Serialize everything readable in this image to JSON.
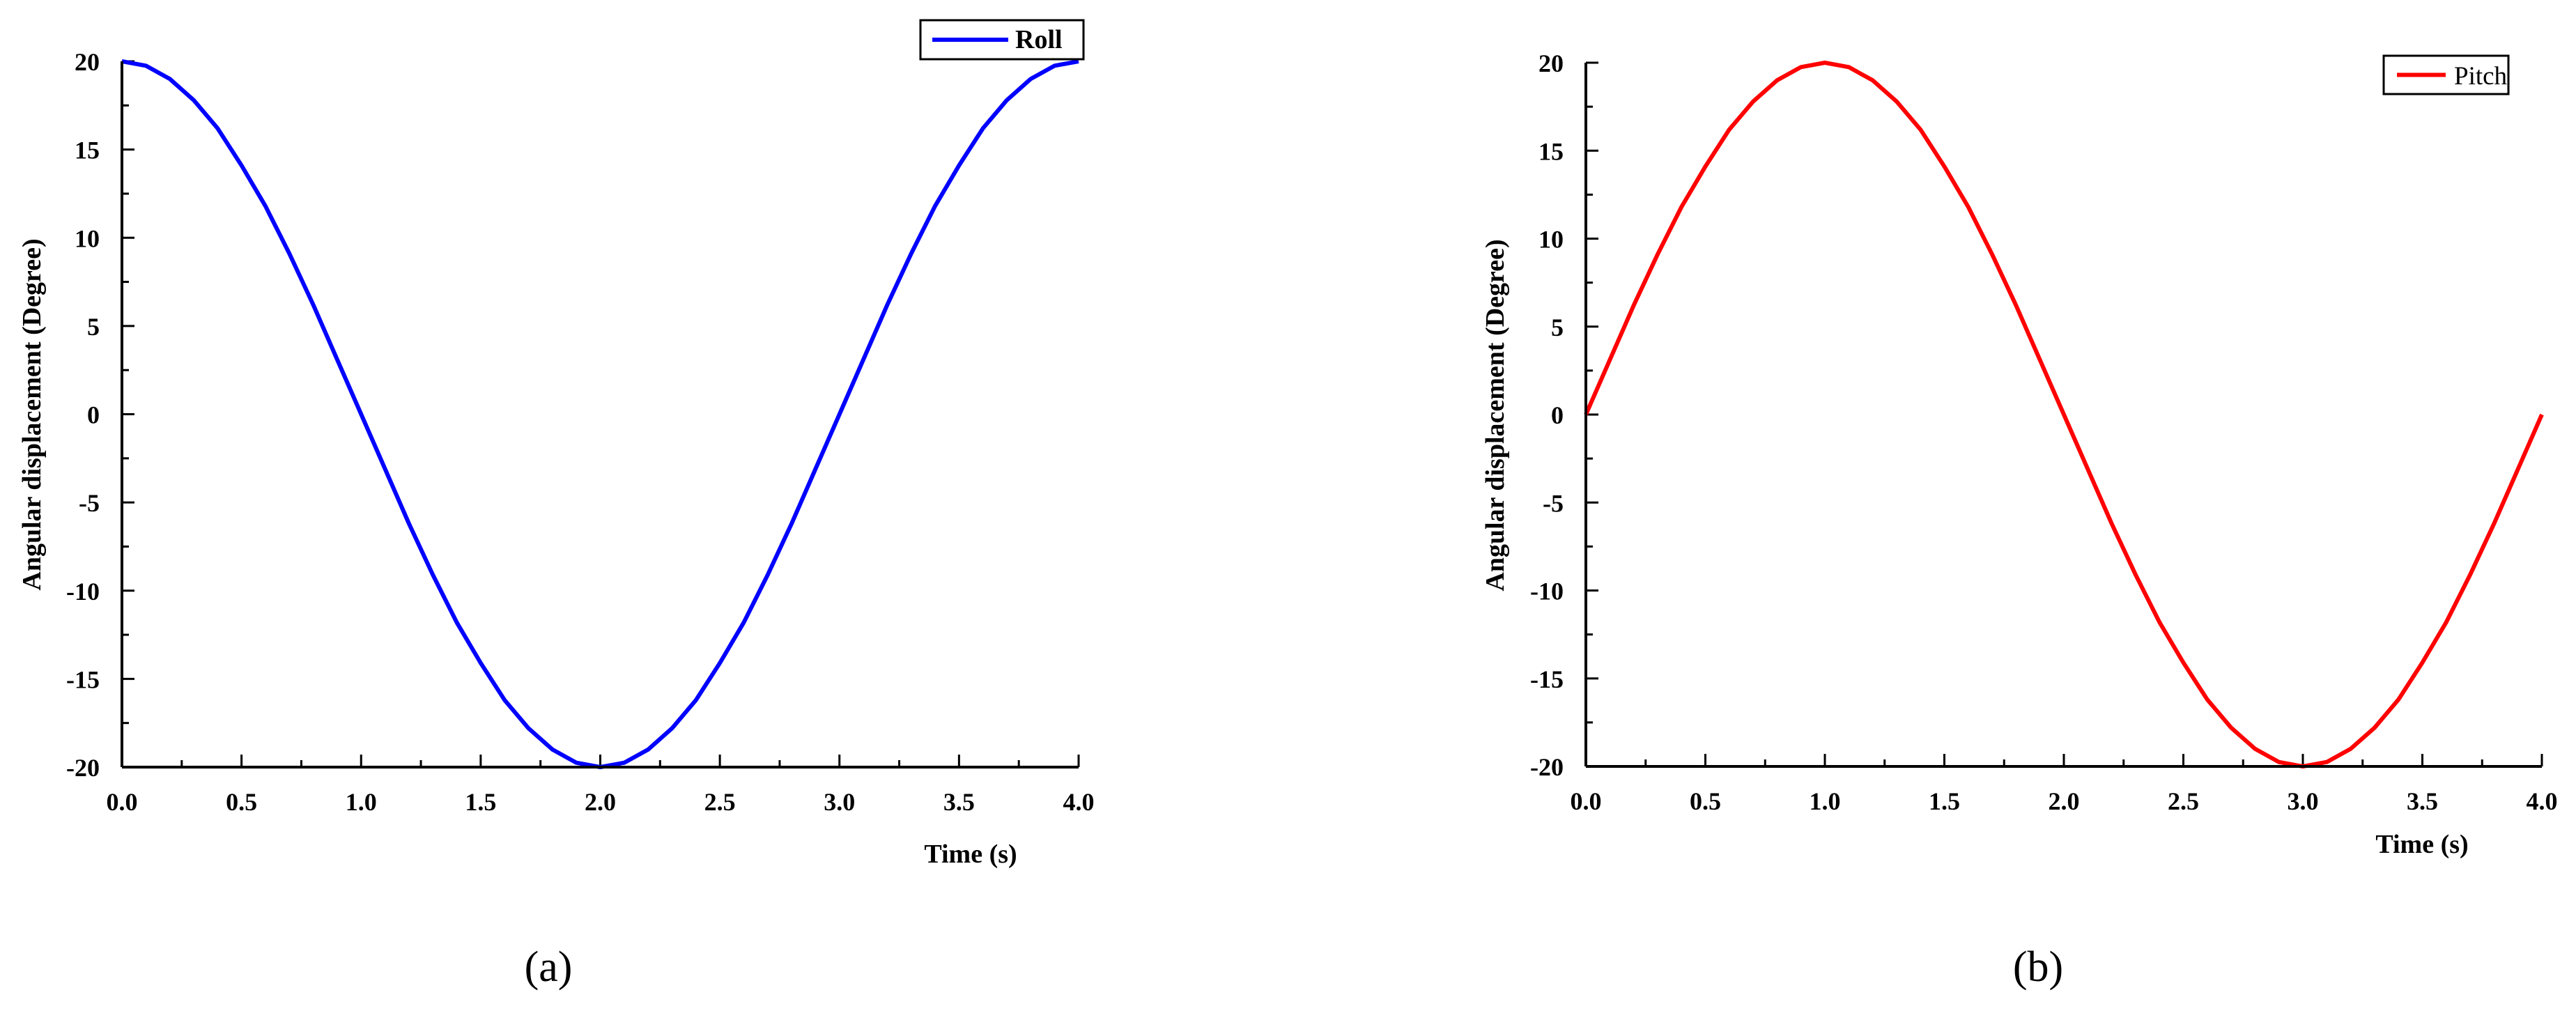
{
  "chart_data": [
    {
      "type": "line",
      "panel_label": "(a)",
      "xlabel": "Time (s)",
      "ylabel": "Angular displacement (Degree)",
      "xlim": [
        0.0,
        4.0
      ],
      "ylim": [
        -20,
        20
      ],
      "xticks": [
        "0.0",
        "0.5",
        "1.0",
        "1.5",
        "2.0",
        "2.5",
        "3.0",
        "3.5",
        "4.0"
      ],
      "yticks": [
        "20",
        "15",
        "10",
        "5",
        "0",
        "-5",
        "-10",
        "-15",
        "-20"
      ],
      "legend_position": "top-right",
      "grid": false,
      "series": [
        {
          "name": "Roll",
          "color": "#0000ff",
          "x": [
            0.0,
            0.1,
            0.2,
            0.3,
            0.4,
            0.5,
            0.6,
            0.7,
            0.8,
            0.9,
            1.0,
            1.1,
            1.2,
            1.3,
            1.4,
            1.5,
            1.6,
            1.7,
            1.8,
            1.9,
            2.0,
            2.1,
            2.2,
            2.3,
            2.4,
            2.5,
            2.6,
            2.7,
            2.8,
            2.9,
            3.0,
            3.1,
            3.2,
            3.3,
            3.4,
            3.5,
            3.6,
            3.7,
            3.8,
            3.9,
            4.0
          ],
          "y": [
            20.0,
            19.75,
            19.0,
            17.8,
            16.2,
            14.1,
            11.8,
            9.1,
            6.2,
            3.1,
            0.0,
            -3.1,
            -6.2,
            -9.1,
            -11.8,
            -14.1,
            -16.2,
            -17.8,
            -19.0,
            -19.75,
            -20.0,
            -19.75,
            -19.0,
            -17.8,
            -16.2,
            -14.1,
            -11.8,
            -9.1,
            -6.2,
            -3.1,
            0.0,
            3.1,
            6.2,
            9.1,
            11.8,
            14.1,
            16.2,
            17.8,
            19.0,
            19.75,
            20.0
          ]
        }
      ]
    },
    {
      "type": "line",
      "panel_label": "(b)",
      "xlabel": "Time (s)",
      "ylabel": "Angular displacement (Degree)",
      "xlim": [
        0.0,
        4.0
      ],
      "ylim": [
        -20,
        20
      ],
      "xticks": [
        "0.0",
        "0.5",
        "1.0",
        "1.5",
        "2.0",
        "2.5",
        "3.0",
        "3.5",
        "4.0"
      ],
      "yticks": [
        "20",
        "15",
        "10",
        "5",
        "0",
        "-5",
        "-10",
        "-15",
        "-20"
      ],
      "legend_position": "top-right",
      "grid": false,
      "series": [
        {
          "name": "Pitch",
          "color": "#ff0000",
          "x": [
            0.0,
            0.1,
            0.2,
            0.3,
            0.4,
            0.5,
            0.6,
            0.7,
            0.8,
            0.9,
            1.0,
            1.1,
            1.2,
            1.3,
            1.4,
            1.5,
            1.6,
            1.7,
            1.8,
            1.9,
            2.0,
            2.1,
            2.2,
            2.3,
            2.4,
            2.5,
            2.6,
            2.7,
            2.8,
            2.9,
            3.0,
            3.1,
            3.2,
            3.3,
            3.4,
            3.5,
            3.6,
            3.7,
            3.8,
            3.9,
            4.0
          ],
          "y": [
            0.0,
            3.1,
            6.2,
            9.1,
            11.8,
            14.1,
            16.2,
            17.8,
            19.0,
            19.75,
            20.0,
            19.75,
            19.0,
            17.8,
            16.2,
            14.1,
            11.8,
            9.1,
            6.2,
            3.1,
            0.0,
            -3.1,
            -6.2,
            -9.1,
            -11.8,
            -14.1,
            -16.2,
            -17.8,
            -19.0,
            -19.75,
            -20.0,
            -19.75,
            -19.0,
            -17.8,
            -16.2,
            -14.1,
            -11.8,
            -9.1,
            -6.2,
            -3.1,
            0.0
          ]
        }
      ]
    }
  ]
}
